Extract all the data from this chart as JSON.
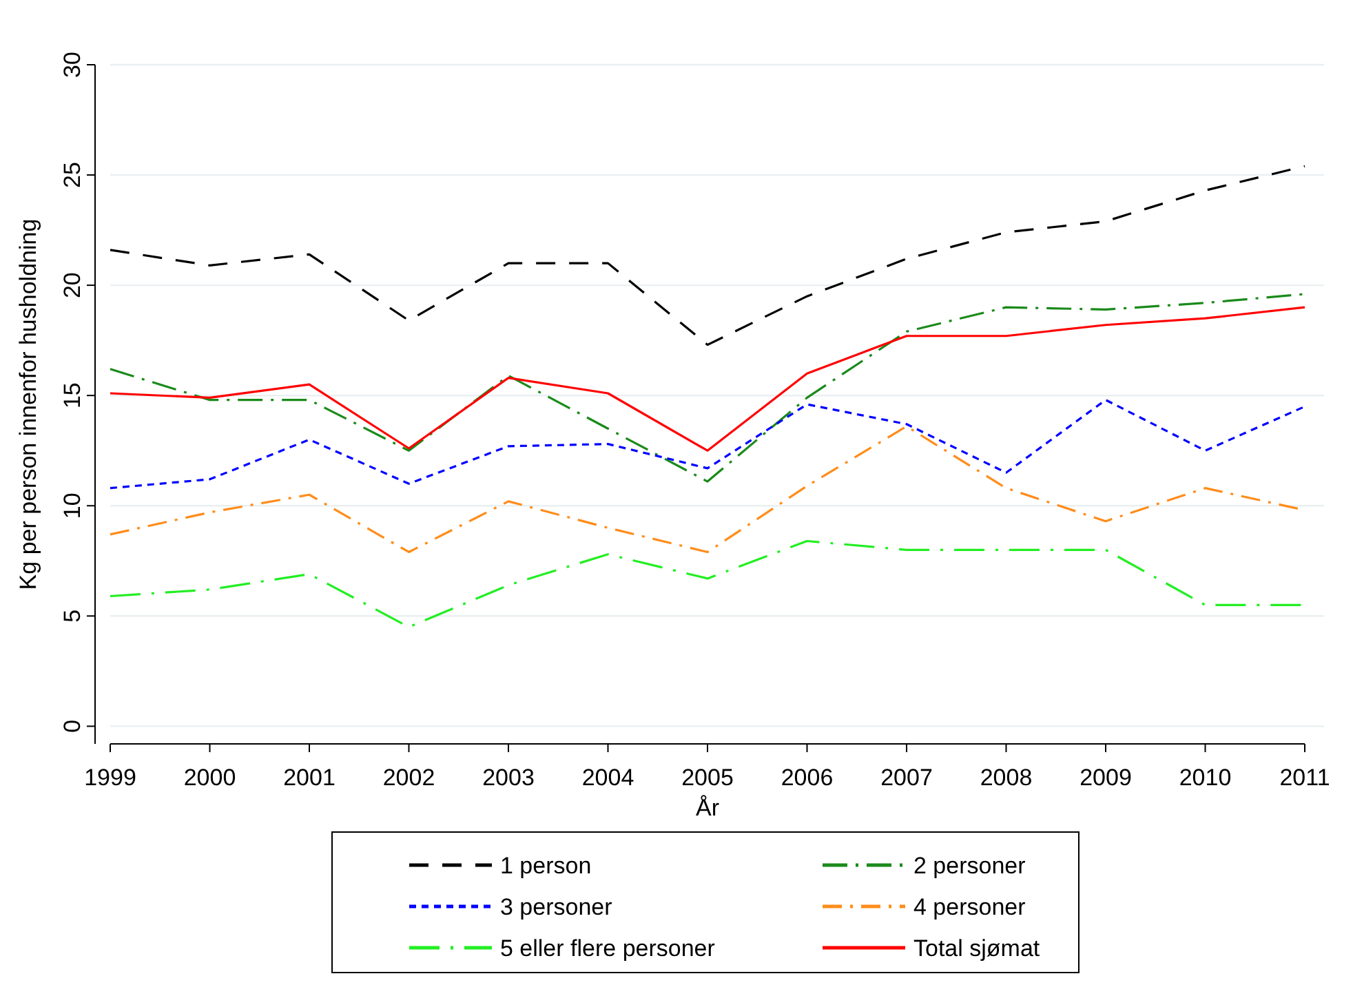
{
  "chart_data": {
    "type": "line",
    "xlabel": "År",
    "ylabel": "Kg per person innenfor husholdning",
    "x": [
      1999,
      2000,
      2001,
      2002,
      2003,
      2004,
      2005,
      2006,
      2007,
      2008,
      2009,
      2010,
      2011
    ],
    "xlim": [
      1999,
      2011
    ],
    "xticks": [
      1999,
      2000,
      2001,
      2002,
      2003,
      2004,
      2005,
      2006,
      2007,
      2008,
      2009,
      2010,
      2011
    ],
    "ylim": [
      -0.8,
      30
    ],
    "yticks": [
      0,
      5,
      10,
      15,
      20,
      25,
      30
    ],
    "grid": "y",
    "legend": "bottom",
    "marker": "none",
    "series": [
      {
        "name": "1 person",
        "color": "#000000",
        "line_style": "dashed",
        "values": [
          21.6,
          20.9,
          21.4,
          18.4,
          21.0,
          21.0,
          17.3,
          19.5,
          21.2,
          22.4,
          22.9,
          24.3,
          25.4
        ]
      },
      {
        "name": "2 personer",
        "color": "#1a8a1a",
        "line_style": "dashed",
        "values": [
          16.2,
          14.8,
          14.8,
          12.5,
          15.9,
          13.5,
          11.1,
          14.9,
          17.9,
          19.0,
          18.9,
          19.2,
          19.6
        ]
      },
      {
        "name": "3 personer",
        "color": "#0000ff",
        "line_style": "dotted",
        "values": [
          10.8,
          11.2,
          13.0,
          11.0,
          12.7,
          12.8,
          11.7,
          14.6,
          13.7,
          11.5,
          14.8,
          12.5,
          14.5
        ]
      },
      {
        "name": "4 personer",
        "color": "#ff8c1a",
        "line_style": "dashed",
        "values": [
          8.7,
          9.7,
          10.5,
          7.9,
          10.2,
          9.0,
          7.9,
          10.9,
          13.6,
          10.8,
          9.3,
          10.8,
          9.8
        ]
      },
      {
        "name": "5 eller flere personer",
        "color": "#22ee22",
        "line_style": "dashed",
        "values": [
          5.9,
          6.2,
          6.9,
          4.5,
          6.4,
          7.8,
          6.7,
          8.4,
          8.0,
          8.0,
          8.0,
          5.5,
          5.5
        ]
      },
      {
        "name": "Total sjømat",
        "color": "#ff0000",
        "line_style": "solid",
        "values": [
          15.1,
          14.9,
          15.5,
          12.6,
          15.8,
          15.1,
          12.5,
          16.0,
          17.7,
          17.7,
          18.2,
          18.5,
          19.0
        ]
      }
    ]
  }
}
